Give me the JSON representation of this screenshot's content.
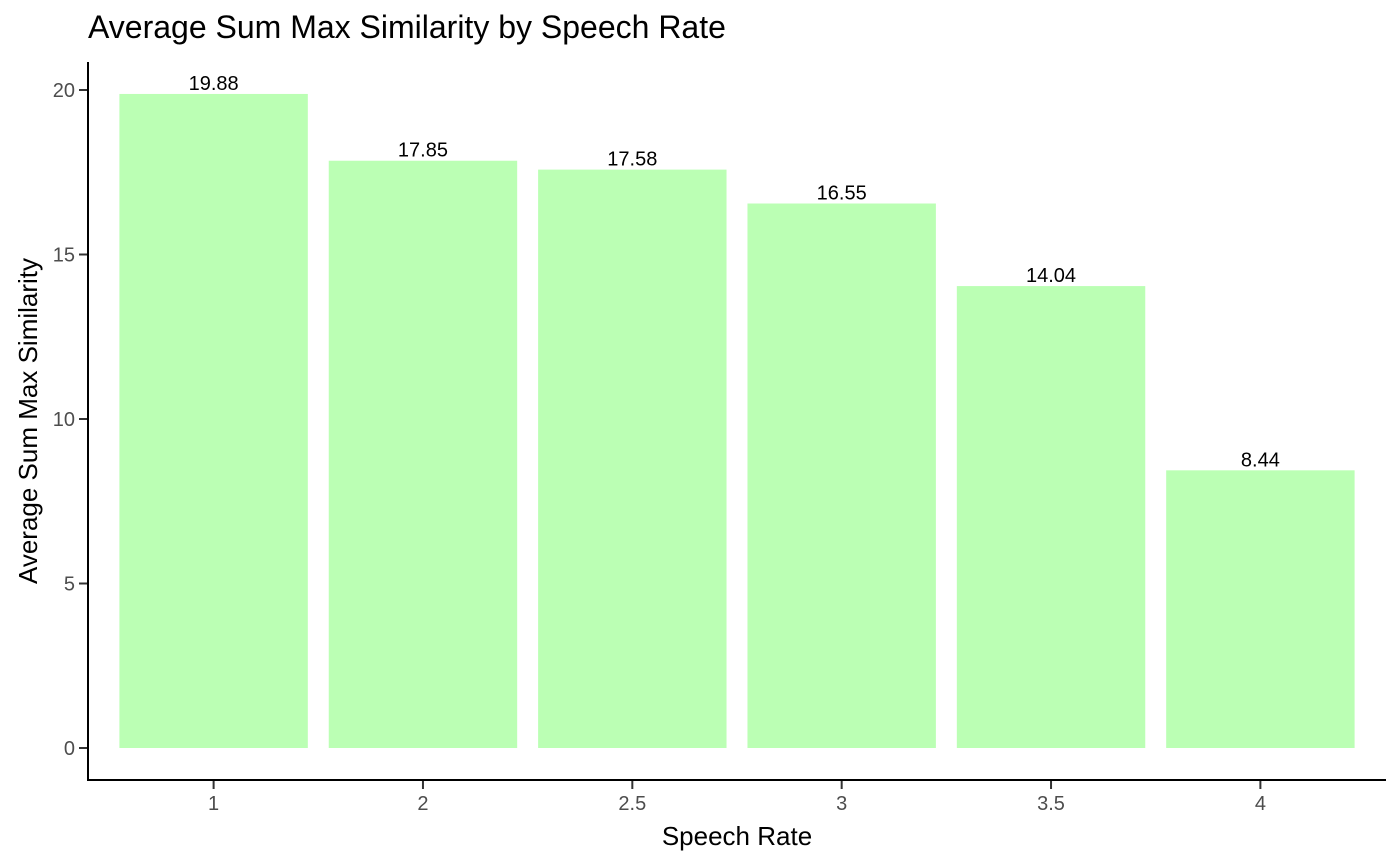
{
  "chart_data": {
    "type": "bar",
    "title": "Average Sum Max Similarity by Speech Rate",
    "xlabel": "Speech Rate",
    "ylabel": "Average Sum Max Similarity",
    "categories": [
      "1",
      "2",
      "2.5",
      "3",
      "3.5",
      "4"
    ],
    "values": [
      19.88,
      17.85,
      17.58,
      16.55,
      14.04,
      8.44
    ],
    "data_labels": [
      "19.88",
      "17.85",
      "17.58",
      "16.55",
      "14.04",
      "8.44"
    ],
    "y_ticks": [
      0,
      5,
      10,
      15,
      20
    ],
    "ylim": [
      0,
      20
    ],
    "grid": false,
    "legend": "none",
    "bar_color": "#bbffb4"
  }
}
